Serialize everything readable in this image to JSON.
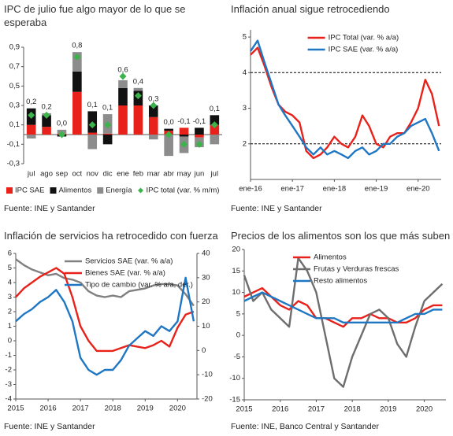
{
  "chart_data": [
    {
      "type": "bar",
      "title": "IPC de julio fue algo mayor de lo que se esperaba",
      "source": "Fuente: INE y Santander",
      "categories": [
        "jul",
        "ago",
        "sep",
        "oct",
        "nov",
        "dic",
        "ene",
        "feb",
        "mar",
        "abr",
        "may",
        "jun",
        "jul"
      ],
      "series": [
        {
          "name": "IPC SAE",
          "color": "#e8221b",
          "values": [
            0.1,
            0.08,
            0.01,
            0.44,
            0.02,
            0.01,
            0.3,
            0.3,
            0.18,
            0.04,
            0.07,
            -0.03,
            0.1
          ]
        },
        {
          "name": "Alimentos",
          "color": "#111111",
          "values": [
            0.17,
            0.12,
            -0.02,
            0.21,
            0.22,
            -0.1,
            0.18,
            0.15,
            0.12,
            0.02,
            -0.02,
            0.07,
            0.1
          ]
        },
        {
          "name": "Energía",
          "color": "#8c8c8c",
          "values": [
            -0.04,
            0.02,
            0.04,
            0.2,
            -0.15,
            0.2,
            0.08,
            0.03,
            -0.05,
            -0.22,
            -0.17,
            -0.1,
            -0.1
          ]
        },
        {
          "name": "IPC total (var. % m/m)",
          "color": "#3cb44b",
          "type": "marker",
          "values": [
            0.2,
            0.2,
            0.0,
            0.8,
            0.1,
            0.1,
            0.6,
            0.4,
            0.3,
            0.0,
            -0.1,
            -0.1,
            0.1
          ],
          "value_labels": [
            "0,2",
            "0,2",
            "0,0",
            "0,8",
            "0,1",
            "0,1",
            "0,6",
            "0,4",
            "0,3",
            "0,0",
            "-0,1",
            "-0,1",
            "0,1"
          ]
        }
      ],
      "ylim": [
        -0.3,
        0.9
      ],
      "yticks": [
        {
          "value": -0.3,
          "label": "-0,3"
        },
        {
          "value": -0.1,
          "label": "-0,1"
        },
        {
          "value": 0.1,
          "label": "0,1"
        },
        {
          "value": 0.3,
          "label": "0,3"
        },
        {
          "value": 0.5,
          "label": "0,5"
        },
        {
          "value": 0.7,
          "label": "0,7"
        },
        {
          "value": 0.9,
          "label": "0,9"
        }
      ],
      "legend": "bottom"
    },
    {
      "type": "line",
      "title": "Inflación anual sigue retrocediendo",
      "source": "Fuente: INE y Santander",
      "x": [
        2016,
        2016.17,
        2016.33,
        2016.5,
        2016.67,
        2016.83,
        2017,
        2017.17,
        2017.33,
        2017.5,
        2017.67,
        2017.83,
        2018,
        2018.17,
        2018.33,
        2018.5,
        2018.67,
        2018.83,
        2019,
        2019.17,
        2019.33,
        2019.5,
        2019.67,
        2019.83,
        2020,
        2020.17,
        2020.33,
        2020.5
      ],
      "series": [
        {
          "name": "IPC Total (var. % a/a)",
          "color": "#e8221b",
          "values": [
            4.5,
            4.7,
            4.2,
            3.6,
            3.1,
            2.9,
            2.8,
            2.6,
            1.8,
            1.6,
            1.7,
            1.9,
            2.2,
            2.0,
            1.9,
            2.2,
            2.8,
            2.5,
            2.0,
            1.9,
            2.2,
            2.3,
            2.3,
            2.6,
            3.0,
            3.8,
            3.4,
            2.5
          ]
        },
        {
          "name": "IPC SAE (var. % a/a)",
          "color": "#1f77c4",
          "values": [
            4.6,
            4.9,
            4.3,
            3.7,
            3.1,
            2.8,
            2.5,
            2.2,
            1.9,
            1.7,
            1.9,
            1.7,
            1.8,
            1.7,
            1.6,
            1.8,
            1.9,
            1.7,
            1.8,
            2.0,
            2.0,
            2.2,
            2.3,
            2.5,
            2.6,
            2.7,
            2.3,
            1.8
          ]
        }
      ],
      "xlim": [
        2016,
        2020.55
      ],
      "xticks": [
        {
          "value": 2016,
          "label": "ene-16"
        },
        {
          "value": 2017,
          "label": "ene-17"
        },
        {
          "value": 2018,
          "label": "ene-18"
        },
        {
          "value": 2019,
          "label": "ene-19"
        },
        {
          "value": 2020,
          "label": "ene-20"
        }
      ],
      "ylim": [
        1,
        5.2
      ],
      "yticks": [
        2,
        3,
        4,
        5
      ],
      "reference_lines": [
        2,
        4
      ],
      "legend": "upper right"
    },
    {
      "type": "line",
      "title": "Inflación de servicios ha retrocedido con fuerza",
      "source": "Fuente: INE y Santander",
      "x": [
        2015,
        2015.25,
        2015.5,
        2015.75,
        2016,
        2016.25,
        2016.5,
        2016.75,
        2017,
        2017.25,
        2017.5,
        2017.75,
        2018,
        2018.25,
        2018.5,
        2018.75,
        2019,
        2019.25,
        2019.5,
        2019.75,
        2020,
        2020.25,
        2020.5
      ],
      "series": [
        {
          "name": "Servicios SAE (var. % a/a)",
          "color": "#808080",
          "values": [
            5.6,
            5.2,
            4.9,
            4.7,
            4.5,
            4.6,
            4.3,
            4.2,
            4.0,
            3.4,
            3.1,
            3.0,
            3.1,
            3.0,
            3.4,
            3.5,
            3.6,
            3.8,
            3.9,
            3.9,
            3.8,
            3.2,
            2.4
          ]
        },
        {
          "name": "Bienes SAE (var. % a/a)",
          "color": "#e8221b",
          "values": [
            3.0,
            3.6,
            4.0,
            4.4,
            4.7,
            5.0,
            4.6,
            3.0,
            1.0,
            0.0,
            -0.7,
            -0.7,
            -0.7,
            -0.5,
            -0.3,
            -0.4,
            -0.5,
            -0.3,
            0.0,
            -0.4,
            0.9,
            1.8,
            2.0
          ]
        },
        {
          "name": "Tipo de cambio (var. % a/a, der.)",
          "color": "#1f77c4",
          "axis": "y2",
          "values": [
            12,
            15,
            17,
            20,
            22,
            25,
            20,
            12,
            -3,
            -8,
            -10,
            -8,
            -8,
            -4,
            2,
            5,
            8,
            6,
            10,
            8,
            12,
            30,
            12
          ]
        }
      ],
      "xlim": [
        2015,
        2020.6
      ],
      "xticks": [
        2015,
        2016,
        2017,
        2018,
        2019,
        2020
      ],
      "ylim": [
        -4,
        6
      ],
      "yticks": [
        -4,
        -3,
        -2,
        -1,
        0,
        1,
        2,
        3,
        4,
        5,
        6
      ],
      "y2lim": [
        -20,
        40
      ],
      "y2ticks": [
        -20,
        -10,
        0,
        10,
        20,
        30,
        40
      ],
      "legend": "upper center"
    },
    {
      "type": "line",
      "title": "Precios de los alimentos son los que más suben",
      "source": "Fuente: INE, Banco Central y Santander",
      "x": [
        2015,
        2015.25,
        2015.5,
        2015.75,
        2016,
        2016.25,
        2016.5,
        2016.75,
        2017,
        2017.25,
        2017.5,
        2017.75,
        2018,
        2018.25,
        2018.5,
        2018.75,
        2019,
        2019.25,
        2019.5,
        2019.75,
        2020,
        2020.25,
        2020.5
      ],
      "series": [
        {
          "name": "Alimentos",
          "color": "#e8221b",
          "values": [
            9,
            10,
            11,
            9,
            7,
            6,
            8,
            7,
            4,
            4,
            3,
            2,
            4,
            4,
            5,
            4,
            4,
            3,
            3,
            4,
            6,
            7,
            7
          ]
        },
        {
          "name": "Frutas y Verduras frescas",
          "color": "#6e6e6e",
          "values": [
            14,
            8,
            10,
            6,
            4,
            2,
            18,
            15,
            10,
            0,
            -10,
            -12,
            -5,
            0,
            5,
            6,
            4,
            -2,
            -5,
            2,
            8,
            10,
            12
          ]
        },
        {
          "name": "Resto alimentos",
          "color": "#1f77c4",
          "values": [
            8,
            9,
            10,
            9,
            8,
            7,
            6,
            5,
            4,
            4,
            4,
            3,
            3,
            3,
            3,
            3,
            3,
            3,
            4,
            5,
            5,
            6,
            6
          ]
        }
      ],
      "xlim": [
        2015,
        2020.6
      ],
      "xticks": [
        2015,
        2016,
        2017,
        2018,
        2019,
        2020
      ],
      "ylim": [
        -15,
        20
      ],
      "yticks": [
        -15,
        -10,
        -5,
        0,
        5,
        10,
        15,
        20
      ],
      "legend": "upper center"
    }
  ]
}
